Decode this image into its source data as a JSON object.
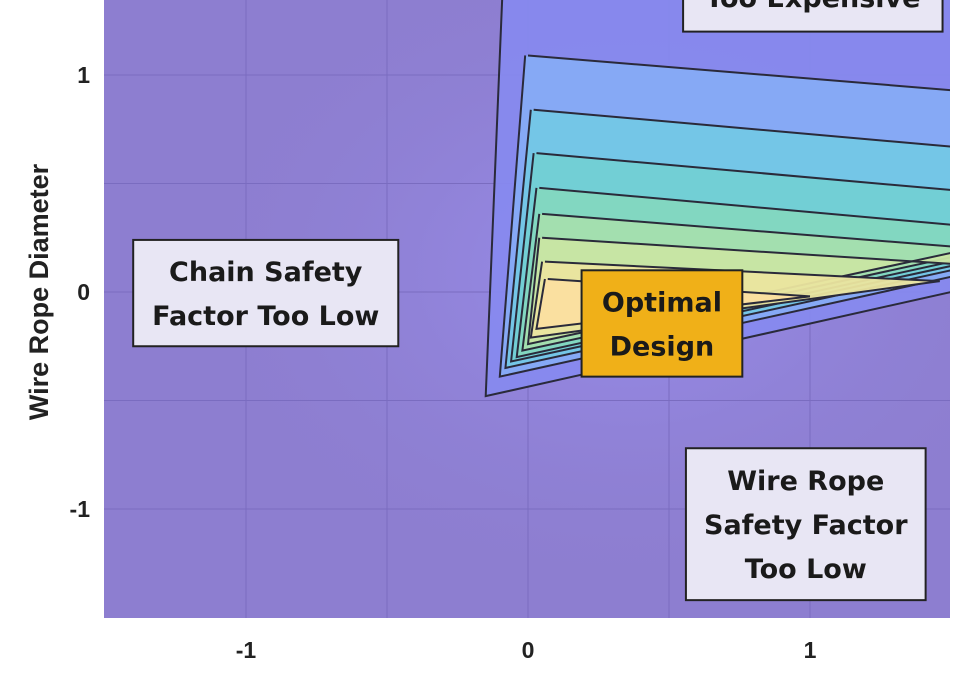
{
  "chart_data": {
    "type": "contour",
    "xlabel": "",
    "ylabel": "Wire Rope Diameter",
    "xlim": [
      -1.5,
      1.5
    ],
    "ylim": [
      -1.5,
      1.35
    ],
    "x_ticks": [
      {
        "value": -1,
        "label": "-1"
      },
      {
        "value": 0,
        "label": "0"
      },
      {
        "value": 1,
        "label": "1"
      }
    ],
    "y_ticks": [
      {
        "value": 1,
        "label": "1"
      },
      {
        "value": 0,
        "label": "0"
      },
      {
        "value": -1,
        "label": "-1"
      }
    ],
    "grid_x": [
      -1,
      -0.5,
      0,
      0.5,
      1
    ],
    "grid_y": [
      1,
      0.5,
      0,
      -0.5,
      -1
    ],
    "contour_levels": [
      {
        "level": 1,
        "color": "#8789ee",
        "line": [
          [
            -0.09,
            1.4
          ],
          [
            -0.15,
            -0.48
          ],
          [
            1.5,
            0.0
          ]
        ]
      },
      {
        "level": 2,
        "color": "#86abf6",
        "line": [
          [
            -0.01,
            1.09
          ],
          [
            -0.1,
            -0.39
          ],
          [
            1.5,
            0.07
          ]
        ],
        "upper": [
          [
            0.0,
            1.09
          ],
          [
            1.5,
            0.93
          ]
        ]
      },
      {
        "level": 3,
        "color": "#73c7e6",
        "line": [
          [
            0.01,
            0.84
          ],
          [
            -0.08,
            -0.35
          ],
          [
            1.5,
            0.1
          ]
        ],
        "upper": [
          [
            0.02,
            0.84
          ],
          [
            1.5,
            0.67
          ]
        ]
      },
      {
        "level": 4,
        "color": "#72d0d4",
        "line": [
          [
            0.02,
            0.64
          ],
          [
            -0.06,
            -0.32
          ],
          [
            1.5,
            0.12
          ]
        ],
        "upper": [
          [
            0.03,
            0.64
          ],
          [
            1.5,
            0.47
          ]
        ]
      },
      {
        "level": 5,
        "color": "#83d7c0",
        "line": [
          [
            0.03,
            0.48
          ],
          [
            -0.04,
            -0.3
          ],
          [
            1.5,
            0.14
          ]
        ],
        "upper": [
          [
            0.04,
            0.48
          ],
          [
            1.5,
            0.31
          ]
        ]
      },
      {
        "level": 6,
        "color": "#a4dfae",
        "line": [
          [
            0.04,
            0.36
          ],
          [
            -0.02,
            -0.27
          ],
          [
            1.5,
            0.16
          ]
        ],
        "upper": [
          [
            0.05,
            0.36
          ],
          [
            1.5,
            0.21
          ]
        ]
      },
      {
        "level": 7,
        "color": "#c9e5a3",
        "line": [
          [
            0.04,
            0.25
          ],
          [
            0.0,
            -0.24
          ],
          [
            1.5,
            0.18
          ]
        ],
        "upper": [
          [
            0.05,
            0.25
          ],
          [
            1.5,
            0.13
          ]
        ]
      },
      {
        "level": 8,
        "color": "#ebe59f",
        "line": [
          [
            0.05,
            0.14
          ],
          [
            0.01,
            -0.21
          ],
          [
            1.46,
            0.05
          ]
        ],
        "upper": [
          [
            0.06,
            0.14
          ],
          [
            1.46,
            0.05
          ]
        ]
      },
      {
        "level": 9,
        "color": "#fbdfa0",
        "line": [
          [
            0.06,
            0.06
          ],
          [
            0.03,
            -0.17
          ],
          [
            1.0,
            -0.02
          ]
        ],
        "upper": [
          [
            0.07,
            0.06
          ],
          [
            1.0,
            -0.02
          ]
        ]
      }
    ],
    "annotations": [
      {
        "text": [
          "Too Expensive"
        ],
        "x": [
          0.55,
          1.47
        ],
        "y": [
          1.2,
          1.52
        ],
        "fill": "#e8e6f4"
      },
      {
        "text": [
          "Chain Safety",
          "Factor Too Low"
        ],
        "x": [
          -1.4,
          -0.46
        ],
        "y": [
          -0.25,
          0.24
        ],
        "fill": "#e8e6f4"
      },
      {
        "text": [
          "Optimal",
          "Design"
        ],
        "x": [
          0.19,
          0.76
        ],
        "y": [
          -0.39,
          0.1
        ],
        "fill": "#f0b018"
      },
      {
        "text": [
          "Wire Rope",
          "Safety Factor",
          "Too Low"
        ],
        "x": [
          0.56,
          1.41
        ],
        "y": [
          -1.42,
          -0.72
        ],
        "fill": "#e8e6f4"
      }
    ]
  },
  "colors": {
    "background": "#8d7ed0",
    "grid": "#7a6cc0",
    "contour_line": "#2a2a3a",
    "box_border": "#222222"
  }
}
